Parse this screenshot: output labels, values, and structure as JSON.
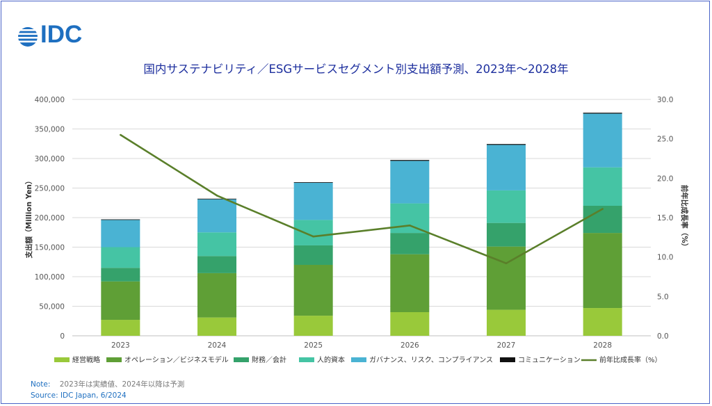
{
  "logo": {
    "text": "IDC"
  },
  "title": "国内サステナビリティ／ESGサービスセグメント別支出額予測、2023年～2028年",
  "notes": {
    "note_label": "Note:",
    "note_text": "2023年は実績値、2024年以降は予測",
    "source": "Source: IDC Japan, 6/2024"
  },
  "chart_data": {
    "type": "bar",
    "stacked": true,
    "categories": [
      "2023",
      "2024",
      "2025",
      "2026",
      "2027",
      "2028"
    ],
    "series": [
      {
        "name": "経営戦略",
        "color": "#99c93a",
        "values": [
          27000,
          31000,
          34000,
          40000,
          44000,
          47000
        ]
      },
      {
        "name": "オペレーション／ビジネスモデル",
        "color": "#5f9f36",
        "values": [
          65000,
          75000,
          86000,
          98000,
          107000,
          127000
        ]
      },
      {
        "name": "財務／会計",
        "color": "#35a26b",
        "values": [
          23000,
          29000,
          33000,
          36000,
          40000,
          46000
        ]
      },
      {
        "name": "人的資本",
        "color": "#45c4a4",
        "values": [
          35000,
          40000,
          43000,
          50000,
          55000,
          65000
        ]
      },
      {
        "name": "ガバナンス、リスク、コンプライアンス",
        "color": "#4ab3d3",
        "values": [
          46000,
          56000,
          63000,
          72000,
          77000,
          91000
        ]
      },
      {
        "name": "コミュニケーション",
        "color": "#111111",
        "values": [
          1000,
          1000,
          1000,
          1500,
          1500,
          1500
        ]
      }
    ],
    "line": {
      "name": "前年比成長率（%）",
      "color": "#5a7f2a",
      "values": [
        25.5,
        17.8,
        12.6,
        14.0,
        9.2,
        16.1
      ]
    },
    "y_left": {
      "label": "支出額（Million Yen）",
      "min": 0,
      "max": 400000,
      "step": 50000,
      "tick_labels": [
        "0",
        "50,000",
        "100,000",
        "150,000",
        "200,000",
        "250,000",
        "300,000",
        "350,000",
        "400,000"
      ]
    },
    "y_right": {
      "label": "前年比成長率（%）",
      "min": 0,
      "max": 30,
      "step": 5,
      "tick_labels": [
        "0.0",
        "5.0",
        "10.0",
        "15.0",
        "20.0",
        "25.0",
        "30.0"
      ]
    },
    "grid": true,
    "legend_position": "bottom"
  }
}
